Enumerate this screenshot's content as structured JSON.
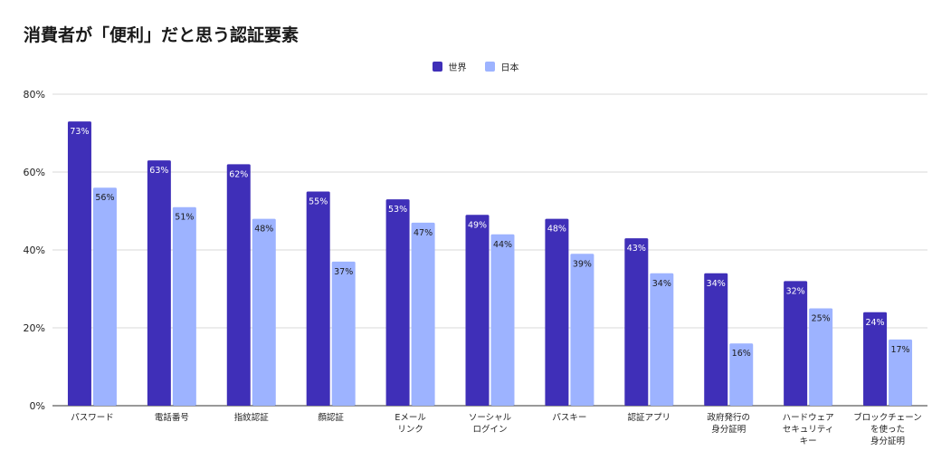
{
  "chart_data": {
    "type": "bar",
    "title": "消費者が「便利」だと思う認証要素",
    "categories": [
      [
        "パスワード"
      ],
      [
        "電話番号"
      ],
      [
        "指紋認証"
      ],
      [
        "顔認証"
      ],
      [
        "Eメール",
        "リンク"
      ],
      [
        "ソーシャル",
        "ログイン"
      ],
      [
        "パスキー"
      ],
      [
        "認証アプリ"
      ],
      [
        "政府発行の",
        "身分証明"
      ],
      [
        "ハードウェア",
        "セキュリティ",
        "キー"
      ],
      [
        "ブロックチェーン",
        "を使った",
        "身分証明"
      ]
    ],
    "series": [
      {
        "name": "世界",
        "color": "#3f2fb8",
        "values": [
          73,
          63,
          62,
          55,
          53,
          49,
          48,
          43,
          34,
          32,
          24
        ]
      },
      {
        "name": "日本",
        "color": "#9db3ff",
        "values": [
          56,
          51,
          48,
          37,
          47,
          44,
          39,
          34,
          16,
          25,
          17
        ]
      }
    ],
    "value_suffix": "%",
    "ylim": [
      0,
      80
    ],
    "yticks": [
      "0%",
      "20%",
      "40%",
      "60%",
      "80%"
    ],
    "ytick_values": [
      0,
      20,
      40,
      60,
      80
    ],
    "grid": true,
    "legend": "top-center"
  }
}
